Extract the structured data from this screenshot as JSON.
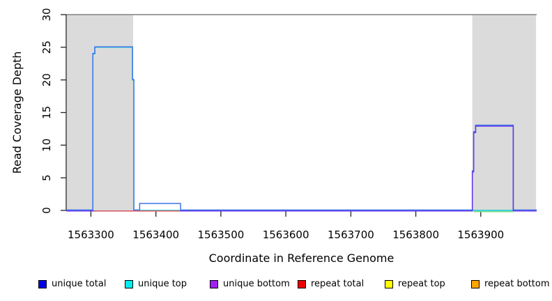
{
  "chart_data": {
    "type": "line",
    "title": "",
    "xlabel": "Coordinate in Reference Genome",
    "ylabel": "Read Coverage Depth",
    "xlim": [
      1563262,
      1563986
    ],
    "ylim": [
      0,
      30
    ],
    "xticks": [
      1563300,
      1563400,
      1563500,
      1563600,
      1563700,
      1563800,
      1563900
    ],
    "yticks": [
      0,
      5,
      10,
      15,
      20,
      25,
      30
    ],
    "grid": false,
    "legend_position": "bottom",
    "max_depth_boundary_line": 30,
    "shaded_regions": [
      {
        "x0": 1563263,
        "x1": 1563365
      },
      {
        "x0": 1563887,
        "x1": 1563985
      }
    ],
    "series": [
      {
        "name": "unique top",
        "color": "#00CDCD",
        "points": [
          [
            1563262,
            0
          ],
          [
            1563303,
            0
          ],
          [
            1563303,
            24
          ],
          [
            1563306,
            24
          ],
          [
            1563306,
            25
          ],
          [
            1563364,
            25
          ],
          [
            1563364,
            20
          ],
          [
            1563366,
            20
          ],
          [
            1563366,
            0
          ],
          [
            1563986,
            0
          ]
        ]
      },
      {
        "name": "unique total",
        "color": "#3E75E8",
        "points": [
          [
            1563262,
            0
          ],
          [
            1563303,
            0
          ],
          [
            1563303,
            24
          ],
          [
            1563306,
            24
          ],
          [
            1563306,
            25
          ],
          [
            1563364,
            25
          ],
          [
            1563364,
            20
          ],
          [
            1563366,
            20
          ],
          [
            1563366,
            0
          ],
          [
            1563375,
            0
          ],
          [
            1563375,
            1
          ],
          [
            1563438,
            1
          ],
          [
            1563438,
            0
          ],
          [
            1563887,
            0
          ],
          [
            1563887,
            6
          ],
          [
            1563889,
            6
          ],
          [
            1563889,
            12
          ],
          [
            1563892,
            12
          ],
          [
            1563892,
            13
          ],
          [
            1563950,
            13
          ],
          [
            1563950,
            0
          ],
          [
            1563986,
            0
          ]
        ]
      },
      {
        "name": "unique bottom",
        "color": "#6236EA",
        "points": [
          [
            1563262,
            0
          ],
          [
            1563887,
            0
          ],
          [
            1563887,
            6
          ],
          [
            1563889,
            6
          ],
          [
            1563889,
            12
          ],
          [
            1563892,
            12
          ],
          [
            1563892,
            13
          ],
          [
            1563950,
            13
          ],
          [
            1563950,
            0
          ],
          [
            1563986,
            0
          ]
        ]
      },
      {
        "name": "repeat total",
        "color": "#E06060",
        "points": [
          [
            1563305,
            0
          ],
          [
            1563437,
            0
          ]
        ]
      },
      {
        "name": "repeat top",
        "color": "#FFFF00",
        "points": []
      },
      {
        "name": "repeat bottom",
        "color": "#FFA500",
        "points": []
      },
      {
        "name": "green baseline segment",
        "color": "#80D880",
        "points": [
          [
            1563889,
            0
          ],
          [
            1563950,
            0
          ]
        ]
      }
    ]
  },
  "legend": {
    "items": [
      {
        "label": "unique total",
        "color": "#0000EE"
      },
      {
        "label": "unique top",
        "color": "#00EEEE"
      },
      {
        "label": "unique bottom",
        "color": "#A020F0"
      },
      {
        "label": "repeat total",
        "color": "#EE0000"
      },
      {
        "label": "repeat top",
        "color": "#FFFF00"
      },
      {
        "label": "repeat bottom",
        "color": "#FFA500"
      }
    ]
  },
  "colors": {
    "shaded_region": "#DBDBDB",
    "boundary_line": "#8F8F8F",
    "axis": "#222222"
  }
}
